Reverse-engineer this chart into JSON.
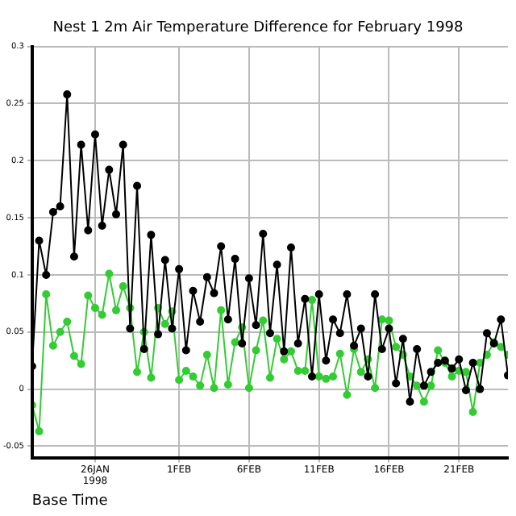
{
  "chart_data": {
    "type": "line",
    "title": "Nest 1 2m Air Temperature Difference for February 1998",
    "xlabel": "Base Time",
    "x": [
      "1998-01-21T12:00",
      "1998-01-22T00:00",
      "1998-01-22T12:00",
      "1998-01-23T00:00",
      "1998-01-23T12:00",
      "1998-01-24T00:00",
      "1998-01-24T12:00",
      "1998-01-25T00:00",
      "1998-01-25T12:00",
      "1998-01-26T00:00",
      "1998-01-26T12:00",
      "1998-01-27T00:00",
      "1998-01-27T12:00",
      "1998-01-28T00:00",
      "1998-01-28T12:00",
      "1998-01-29T00:00",
      "1998-01-29T12:00",
      "1998-01-30T00:00",
      "1998-01-30T12:00",
      "1998-01-31T00:00",
      "1998-01-31T12:00",
      "1998-02-01T00:00",
      "1998-02-01T12:00",
      "1998-02-02T00:00",
      "1998-02-02T12:00",
      "1998-02-03T00:00",
      "1998-02-03T12:00",
      "1998-02-04T00:00",
      "1998-02-04T12:00",
      "1998-02-05T00:00",
      "1998-02-05T12:00",
      "1998-02-06T00:00",
      "1998-02-06T12:00",
      "1998-02-07T00:00",
      "1998-02-07T12:00",
      "1998-02-08T00:00",
      "1998-02-08T12:00",
      "1998-02-09T00:00",
      "1998-02-09T12:00",
      "1998-02-10T00:00",
      "1998-02-10T12:00",
      "1998-02-11T00:00",
      "1998-02-11T12:00",
      "1998-02-12T00:00",
      "1998-02-12T12:00",
      "1998-02-13T00:00",
      "1998-02-13T12:00",
      "1998-02-14T00:00",
      "1998-02-14T12:00",
      "1998-02-15T00:00",
      "1998-02-15T12:00",
      "1998-02-16T00:00",
      "1998-02-16T12:00",
      "1998-02-17T00:00",
      "1998-02-17T12:00",
      "1998-02-18T00:00",
      "1998-02-18T12:00",
      "1998-02-19T00:00",
      "1998-02-19T12:00",
      "1998-02-20T00:00",
      "1998-02-20T12:00",
      "1998-02-21T00:00",
      "1998-02-21T12:00",
      "1998-02-22T00:00",
      "1998-02-22T12:00",
      "1998-02-23T00:00",
      "1998-02-23T12:00",
      "1998-02-24T00:00",
      "1998-02-24T12:00"
    ],
    "series": [
      {
        "color": "#000000",
        "values": [
          0.02,
          0.13,
          0.1,
          0.155,
          0.16,
          0.258,
          0.116,
          0.214,
          0.139,
          0.223,
          0.143,
          0.192,
          0.153,
          0.214,
          0.053,
          0.178,
          0.035,
          0.135,
          0.048,
          0.113,
          0.053,
          0.105,
          0.034,
          0.086,
          0.059,
          0.098,
          0.084,
          0.125,
          0.061,
          0.114,
          0.04,
          0.097,
          0.056,
          0.136,
          0.049,
          0.109,
          0.033,
          0.124,
          0.04,
          0.079,
          0.011,
          0.083,
          0.025,
          0.061,
          0.049,
          0.083,
          0.038,
          0.053,
          0.011,
          0.083,
          0.035,
          0.053,
          0.005,
          0.044,
          -0.011,
          0.035,
          0.003,
          0.015,
          0.023,
          0.025,
          0.018,
          0.026,
          -0.001,
          0.023,
          0.0,
          0.049,
          0.04,
          0.061,
          0.012
        ]
      },
      {
        "color": "#33cc33",
        "values": [
          -0.014,
          -0.037,
          0.083,
          0.038,
          0.05,
          0.059,
          0.029,
          0.022,
          0.082,
          0.071,
          0.065,
          0.101,
          0.069,
          0.09,
          0.071,
          0.015,
          0.05,
          0.01,
          0.071,
          0.057,
          0.068,
          0.008,
          0.016,
          0.011,
          0.003,
          0.03,
          0.001,
          0.069,
          0.004,
          0.041,
          0.054,
          0.001,
          0.034,
          0.06,
          0.01,
          0.044,
          0.026,
          0.033,
          0.016,
          0.016,
          0.078,
          0.011,
          0.009,
          0.011,
          0.031,
          -0.005,
          0.035,
          0.015,
          0.026,
          0.001,
          0.061,
          0.06,
          0.037,
          0.03,
          0.011,
          0.003,
          -0.011,
          0.003,
          0.034,
          0.023,
          0.011,
          0.016,
          0.015,
          -0.02,
          0.023,
          0.03,
          0.041,
          0.037,
          0.03
        ]
      }
    ],
    "xlim": [
      "1998-01-21T12:00",
      "1998-02-24T12:00"
    ],
    "xticks": [
      {
        "value": "1998-01-26",
        "label": "26JAN\n1998"
      },
      {
        "value": "1998-02-01",
        "label": "1FEB"
      },
      {
        "value": "1998-02-06",
        "label": "6FEB"
      },
      {
        "value": "1998-02-11",
        "label": "11FEB"
      },
      {
        "value": "1998-02-16",
        "label": "16FEB"
      },
      {
        "value": "1998-02-21",
        "label": "21FEB"
      }
    ],
    "ylim": [
      -0.06,
      0.3
    ],
    "yticks": [
      -0.05,
      0,
      0.05,
      0.1,
      0.15,
      0.2,
      0.25,
      0.3
    ],
    "grid": true,
    "legend": false,
    "marker": "circle",
    "line_style": "solid"
  }
}
